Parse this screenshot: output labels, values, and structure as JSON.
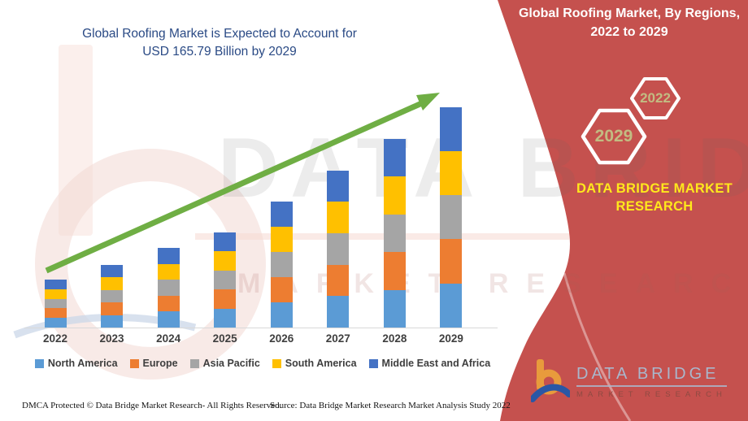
{
  "title": {
    "line1": "Global Roofing Market is Expected to Account for",
    "line2": "USD 165.79 Billion by 2029"
  },
  "banner": {
    "line1": "Global Roofing Market, By Regions,",
    "line2": "2022 to 2029"
  },
  "hexagons": {
    "large_label": "2029",
    "small_label": "2022",
    "label_color": "#C2BC82"
  },
  "brand_block": {
    "line1": "DATA BRIDGE MARKET",
    "line2": "RESEARCH",
    "color": "#FFE81C"
  },
  "logo": {
    "name": "DATA BRIDGE",
    "subtitle": "MARKET RESEARCH"
  },
  "watermark": {
    "line1": "DATA BRIDGE",
    "line2": "MARKET RESEARCH"
  },
  "footer": {
    "left": "DMCA Protected © Data Bridge Market Research- All Rights Reserved.",
    "right": "Source: Data Bridge Market Research Market Analysis Study 2022"
  },
  "colors": {
    "accent_red": "#C5514E",
    "title_blue": "#2A4A85",
    "arrow_green": "#6FAE44",
    "axis_gray": "#D9D9D9",
    "label_gray": "#3F3F3F"
  },
  "chart_data": {
    "type": "bar",
    "stacked": true,
    "unit": "USD Billion",
    "categories": [
      "2022",
      "2023",
      "2024",
      "2025",
      "2026",
      "2027",
      "2028",
      "2029"
    ],
    "series": [
      {
        "name": "North America",
        "color": "#5B9BD5",
        "values": [
          7.2,
          9.5,
          12.0,
          14.3,
          19.0,
          23.7,
          28.4,
          33.2
        ]
      },
      {
        "name": "Europe",
        "color": "#ED7D31",
        "values": [
          7.2,
          9.5,
          12.0,
          14.3,
          19.0,
          23.7,
          28.4,
          33.2
        ]
      },
      {
        "name": "Asia Pacific",
        "color": "#A5A5A5",
        "values": [
          7.2,
          9.5,
          12.0,
          14.3,
          19.0,
          23.7,
          28.4,
          33.2
        ]
      },
      {
        "name": "South America",
        "color": "#FFC000",
        "values": [
          7.2,
          9.5,
          12.0,
          14.3,
          19.0,
          23.7,
          28.4,
          33.2
        ]
      },
      {
        "name": "Middle East and Africa",
        "color": "#4472C4",
        "values": [
          7.2,
          9.5,
          12.0,
          14.3,
          19.0,
          23.7,
          28.4,
          33.2
        ]
      }
    ],
    "totals": [
      36.1,
      47.7,
      60.0,
      71.6,
      94.8,
      118.7,
      141.9,
      165.79
    ],
    "highlight_value_2029": "165.79",
    "legend_position": "bottom",
    "gridlines": false,
    "y_axis_visible": false,
    "trend_arrow": true
  }
}
